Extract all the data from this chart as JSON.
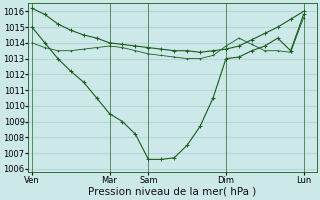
{
  "background_color": "#cce8e8",
  "grid_color": "#aacccc",
  "line_color": "#1a5c1a",
  "ylim": [
    1005.8,
    1016.5
  ],
  "yticks": [
    1006,
    1007,
    1008,
    1009,
    1010,
    1011,
    1012,
    1013,
    1014,
    1015,
    1016
  ],
  "xlabel": "Pression niveau de la mer( hPa )",
  "xlabel_fontsize": 7.5,
  "tick_fontsize": 6,
  "xtick_labels": [
    "Ven",
    "Mar",
    "Sam",
    "Dim",
    "Lun"
  ],
  "xtick_positions": [
    0,
    6,
    9,
    15,
    21
  ],
  "xlim": [
    -0.3,
    22
  ],
  "line_flat_x": [
    0,
    1,
    2,
    3,
    4,
    5,
    6,
    7,
    8,
    9,
    10,
    11,
    12,
    13,
    14,
    15,
    16,
    17,
    18,
    19,
    20,
    21
  ],
  "line_flat_y": [
    1016.2,
    1015.8,
    1015.2,
    1014.8,
    1014.5,
    1014.3,
    1014.0,
    1013.9,
    1013.8,
    1013.7,
    1013.6,
    1013.5,
    1013.5,
    1013.4,
    1013.5,
    1013.6,
    1013.8,
    1014.2,
    1014.6,
    1015.0,
    1015.5,
    1016.0
  ],
  "line_dip_x": [
    0,
    1,
    2,
    3,
    4,
    5,
    6,
    7,
    8,
    9,
    10,
    11,
    12,
    13,
    14,
    15,
    16,
    17,
    18,
    19,
    20,
    21
  ],
  "line_dip_y": [
    1015.0,
    1014.0,
    1013.0,
    1012.2,
    1011.5,
    1010.5,
    1009.5,
    1009.0,
    1008.2,
    1006.6,
    1006.6,
    1006.7,
    1007.5,
    1008.7,
    1010.5,
    1013.0,
    1013.1,
    1013.5,
    1013.8,
    1014.3,
    1013.5,
    1015.8
  ],
  "line_mid_x": [
    0,
    1,
    2,
    3,
    4,
    5,
    6,
    7,
    8,
    9,
    10,
    11,
    12,
    13,
    14,
    15,
    16,
    17,
    18,
    19,
    20,
    21
  ],
  "line_mid_y": [
    1014.0,
    1013.7,
    1013.5,
    1013.5,
    1013.6,
    1013.7,
    1013.8,
    1013.7,
    1013.5,
    1013.3,
    1013.2,
    1013.1,
    1013.0,
    1013.0,
    1013.2,
    1013.8,
    1014.3,
    1013.9,
    1013.5,
    1013.5,
    1013.4,
    1015.6
  ]
}
